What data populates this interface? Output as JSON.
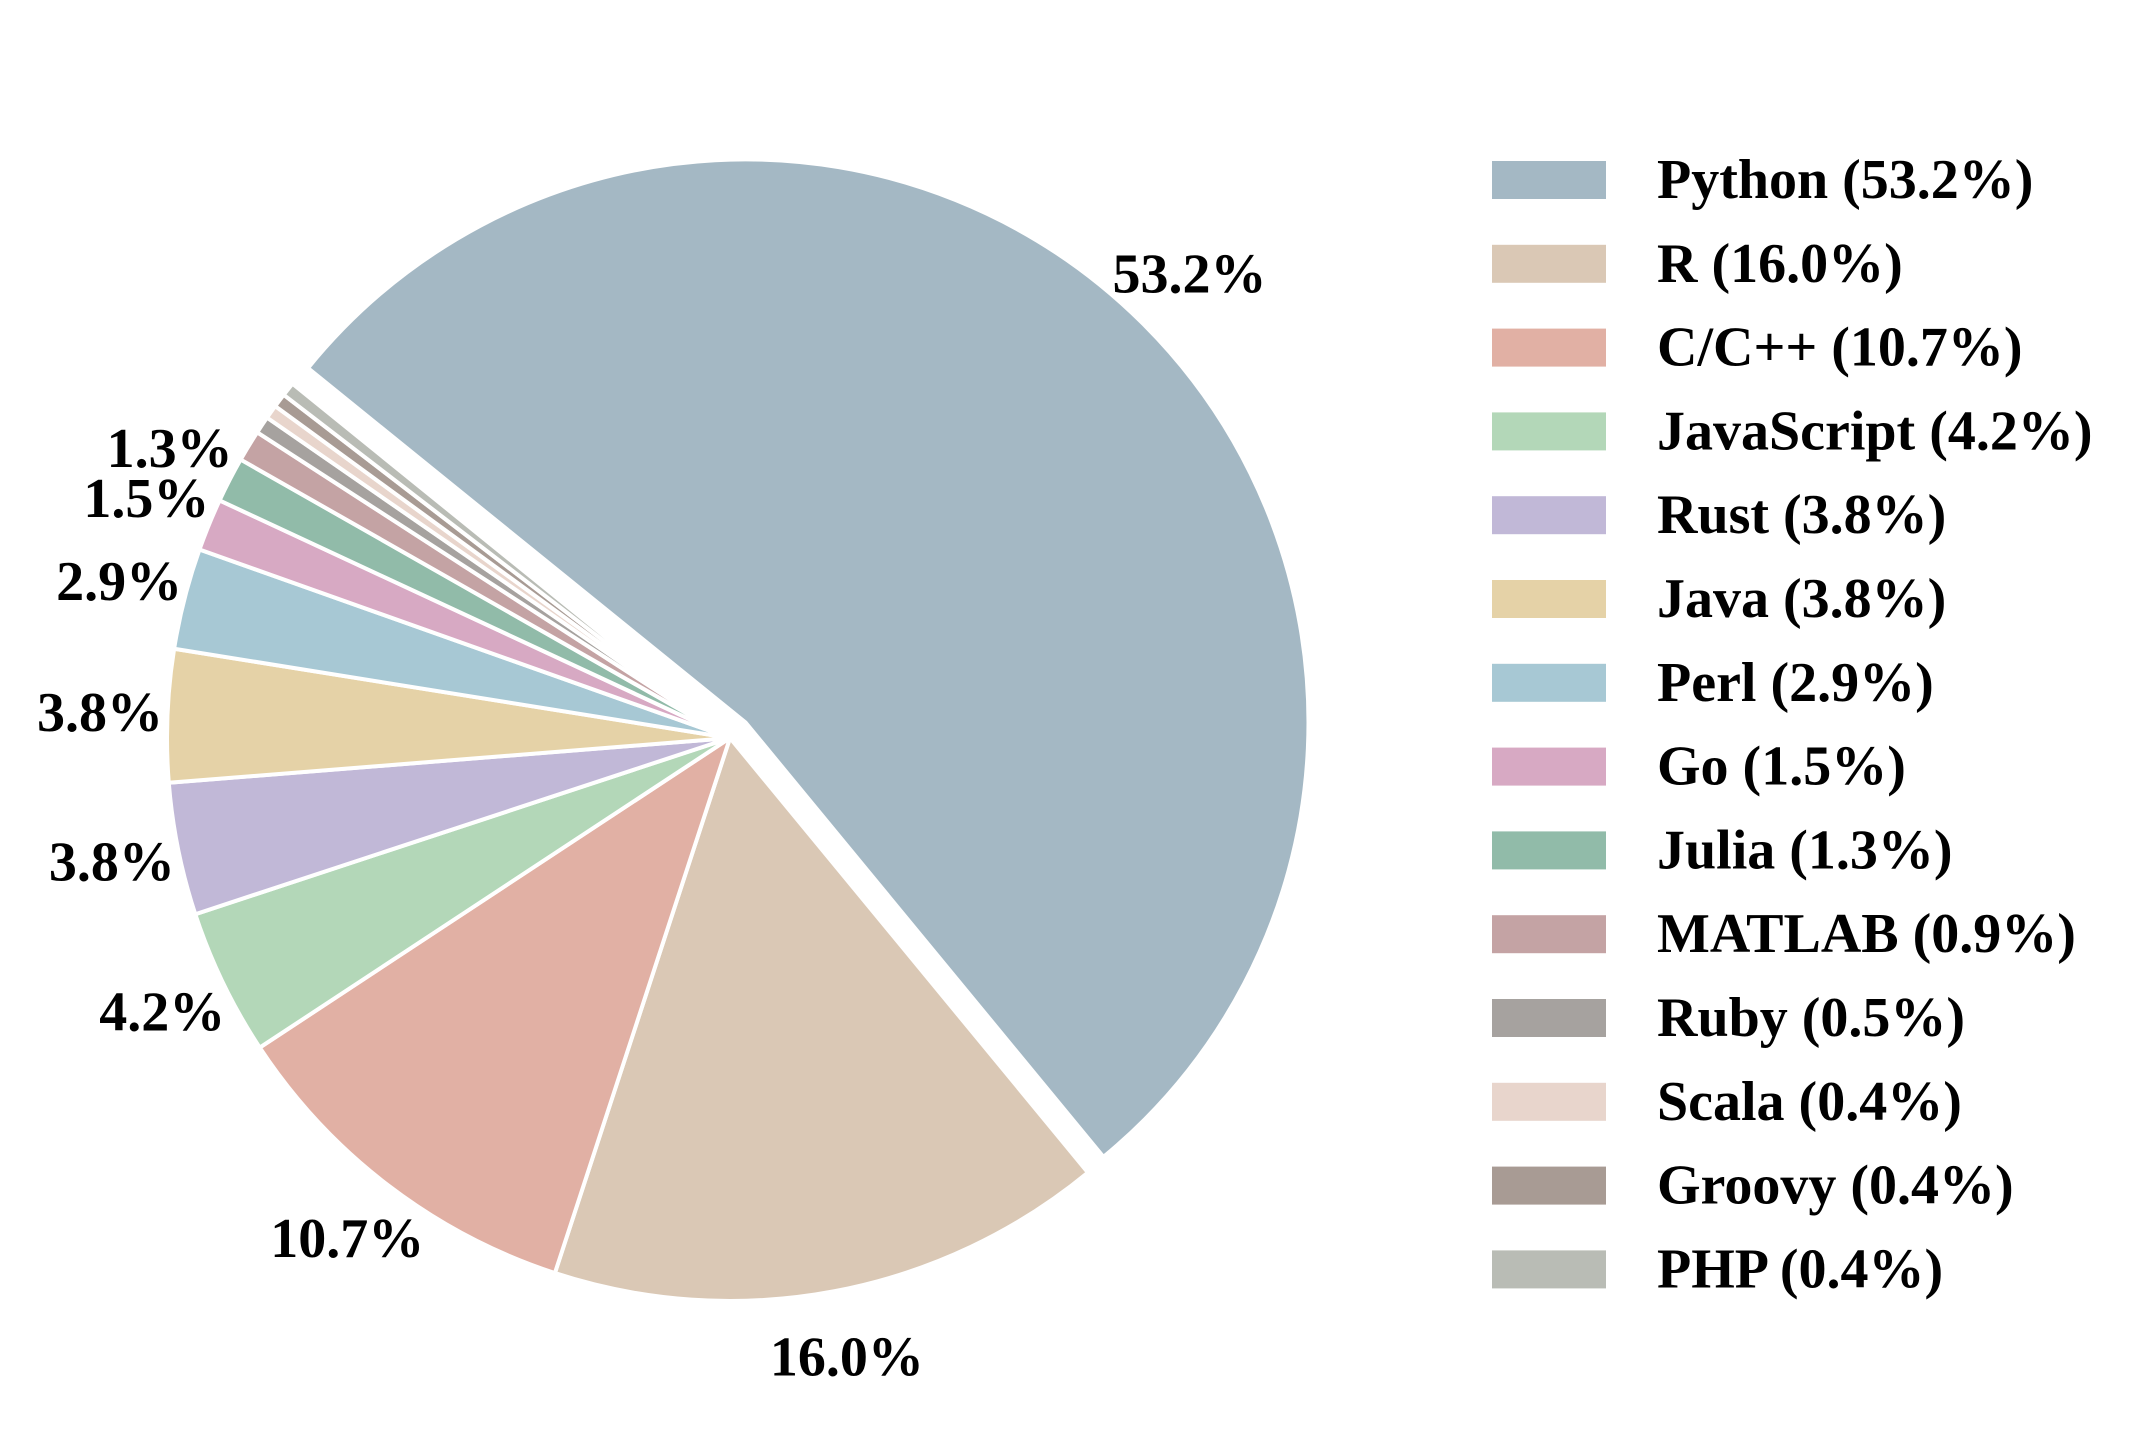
{
  "chart_data": {
    "type": "pie",
    "title": "",
    "start_angle_deg": 141,
    "direction": "clockwise",
    "exploded_slice": "Python",
    "slices": [
      {
        "label": "Python",
        "value": 53.2,
        "pct_text": "53.2%",
        "legend_text": "Python (53.2%)",
        "color": "#a4b8c4"
      },
      {
        "label": "R",
        "value": 16.0,
        "pct_text": "16.0%",
        "legend_text": "R (16.0%)",
        "color": "#dac8b5"
      },
      {
        "label": "C/C++",
        "value": 10.7,
        "pct_text": "10.7%",
        "legend_text": "C/C++ (10.7%)",
        "color": "#e1b0a4"
      },
      {
        "label": "JavaScript",
        "value": 4.2,
        "pct_text": "4.2%",
        "legend_text": "JavaScript (4.2%)",
        "color": "#b3d7b8"
      },
      {
        "label": "Rust",
        "value": 3.8,
        "pct_text": "3.8%",
        "legend_text": "Rust (3.8%)",
        "color": "#c1b8d7"
      },
      {
        "label": "Java",
        "value": 3.8,
        "pct_text": "3.8%",
        "legend_text": "Java (3.8%)",
        "color": "#e5d2a7"
      },
      {
        "label": "Perl",
        "value": 2.9,
        "pct_text": "2.9%",
        "legend_text": "Perl (2.9%)",
        "color": "#a7c8d4"
      },
      {
        "label": "Go",
        "value": 1.5,
        "pct_text": "1.5%",
        "legend_text": "Go (1.5%)",
        "color": "#d7a9c3"
      },
      {
        "label": "Julia",
        "value": 1.3,
        "pct_text": "1.3%",
        "legend_text": "Julia (1.3%)",
        "color": "#91bba9"
      },
      {
        "label": "MATLAB",
        "value": 0.9,
        "pct_text": "",
        "legend_text": "MATLAB (0.9%)",
        "color": "#c4a3a4"
      },
      {
        "label": "Ruby",
        "value": 0.5,
        "pct_text": "",
        "legend_text": "Ruby (0.5%)",
        "color": "#a6a29f"
      },
      {
        "label": "Scala",
        "value": 0.4,
        "pct_text": "",
        "legend_text": "Scala (0.4%)",
        "color": "#e8d5cc"
      },
      {
        "label": "Groovy",
        "value": 0.4,
        "pct_text": "",
        "legend_text": "Groovy (0.4%)",
        "color": "#a89b94"
      },
      {
        "label": "PHP",
        "value": 0.4,
        "pct_text": "",
        "legend_text": "PHP (0.4%)",
        "color": "#b9bcb5"
      }
    ],
    "legend_position": "right"
  }
}
